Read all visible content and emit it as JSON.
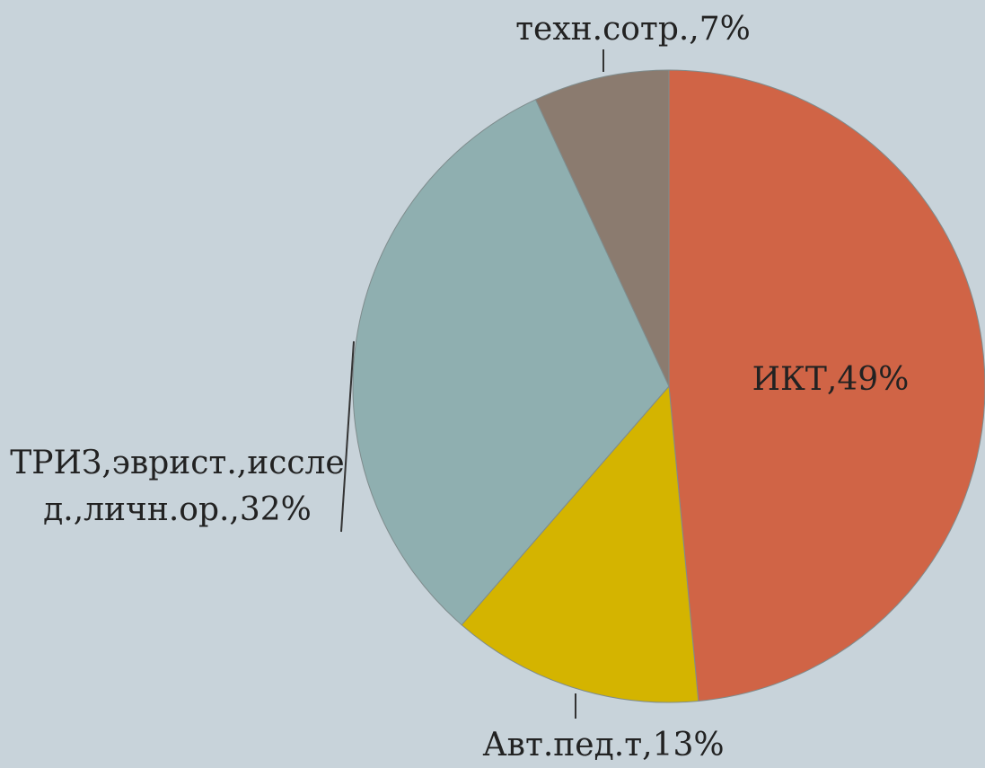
{
  "chart_data": {
    "type": "pie",
    "categories": [
      "ИКТ",
      "Авт.пед.т",
      "ТРИЗ,эврист.,исслед.,личн.ор.",
      "техн.сотр."
    ],
    "values": [
      49,
      13,
      32,
      7
    ],
    "value_labels": [
      "ИКТ,49%",
      "Авт.пед.т,13%",
      "ТРИЗ,эврист.,исслед.,личн.ор.,32%",
      "техн.сотр.,7%"
    ],
    "colors": [
      "#d06446",
      "#d4b400",
      "#8fafb0",
      "#8b7b6f"
    ]
  }
}
